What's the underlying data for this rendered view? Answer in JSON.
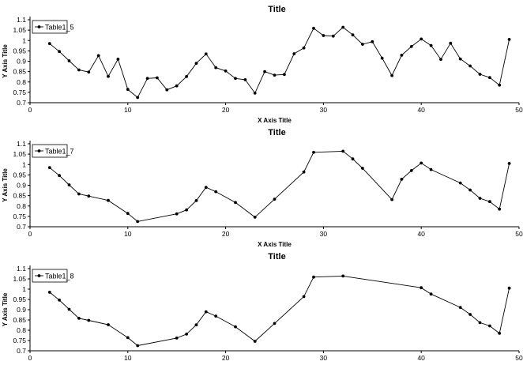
{
  "chart_data": [
    {
      "type": "line",
      "title": "Title",
      "xlabel": "X Axis Title",
      "ylabel": "Y Axis Title",
      "xlim": [
        0,
        50
      ],
      "ylim": [
        0.7,
        1.1
      ],
      "xticks": [
        0,
        10,
        20,
        30,
        40,
        50
      ],
      "yticks": [
        0.7,
        0.75,
        0.8,
        0.85,
        0.9,
        0.95,
        1,
        1.05,
        1.1
      ],
      "grid": false,
      "legend": "top-left",
      "series": [
        {
          "name": "Table1_5",
          "color": "#000000",
          "x": [
            2,
            3,
            4,
            5,
            6,
            7,
            8,
            9,
            10,
            11,
            12,
            13,
            14,
            15,
            16,
            17,
            18,
            19,
            20,
            21,
            22,
            23,
            24,
            25,
            26,
            27,
            28,
            29,
            30,
            31,
            32,
            33,
            34,
            35,
            36,
            37,
            38,
            39,
            40,
            41,
            42,
            43,
            44,
            45,
            46,
            47,
            48,
            49
          ],
          "y": [
            0.985,
            0.947,
            0.902,
            0.858,
            0.848,
            0.927,
            0.827,
            0.91,
            0.764,
            0.725,
            0.817,
            0.82,
            0.762,
            0.781,
            0.826,
            0.89,
            0.935,
            0.869,
            0.853,
            0.817,
            0.811,
            0.746,
            0.85,
            0.833,
            0.836,
            0.936,
            0.964,
            1.059,
            1.024,
            1.021,
            1.064,
            1.027,
            0.982,
            0.994,
            0.915,
            0.831,
            0.929,
            0.971,
            1.007,
            0.976,
            0.909,
            0.987,
            0.911,
            0.877,
            0.837,
            0.821,
            0.785,
            1.005
          ]
        }
      ]
    },
    {
      "type": "line",
      "title": "Title",
      "xlabel": "X Axis Title",
      "ylabel": "Y Axis Title",
      "xlim": [
        0,
        50
      ],
      "ylim": [
        0.7,
        1.1
      ],
      "xticks": [
        0,
        10,
        20,
        30,
        40,
        50
      ],
      "yticks": [
        0.7,
        0.75,
        0.8,
        0.85,
        0.9,
        0.95,
        1,
        1.05,
        1.1
      ],
      "grid": false,
      "legend": "top-left",
      "series": [
        {
          "name": "Table1_7",
          "color": "#000000",
          "x": [
            2,
            3,
            4,
            5,
            6,
            8,
            10,
            11,
            15,
            16,
            17,
            18,
            19,
            21,
            23,
            25,
            28,
            29,
            32,
            33,
            34,
            37,
            38,
            39,
            40,
            41,
            44,
            45,
            46,
            47,
            48,
            49
          ],
          "y": [
            0.985,
            0.947,
            0.902,
            0.858,
            0.848,
            0.827,
            0.764,
            0.725,
            0.762,
            0.781,
            0.826,
            0.89,
            0.869,
            0.817,
            0.746,
            0.833,
            0.964,
            1.059,
            1.064,
            1.027,
            0.982,
            0.831,
            0.929,
            0.971,
            1.007,
            0.976,
            0.911,
            0.877,
            0.837,
            0.821,
            0.785,
            1.005
          ]
        }
      ]
    },
    {
      "type": "line",
      "title": "Title",
      "xlabel": "",
      "ylabel": "Y Axis Title",
      "xlim": [
        0,
        50
      ],
      "ylim": [
        0.7,
        1.1
      ],
      "xticks": [
        0,
        10,
        20,
        30,
        40,
        50
      ],
      "yticks": [
        0.7,
        0.75,
        0.8,
        0.85,
        0.9,
        0.95,
        1,
        1.05,
        1.1
      ],
      "grid": false,
      "legend": "top-left",
      "series": [
        {
          "name": "Table1_8",
          "color": "#000000",
          "x": [
            2,
            3,
            4,
            5,
            6,
            8,
            10,
            11,
            15,
            16,
            17,
            18,
            19,
            21,
            23,
            25,
            28,
            29,
            32,
            40,
            41,
            44,
            45,
            46,
            47,
            48,
            49
          ],
          "y": [
            0.985,
            0.947,
            0.902,
            0.858,
            0.848,
            0.827,
            0.764,
            0.725,
            0.762,
            0.781,
            0.826,
            0.89,
            0.869,
            0.817,
            0.746,
            0.833,
            0.964,
            1.059,
            1.064,
            1.007,
            0.976,
            0.911,
            0.877,
            0.837,
            0.821,
            0.785,
            1.005
          ]
        }
      ]
    }
  ]
}
